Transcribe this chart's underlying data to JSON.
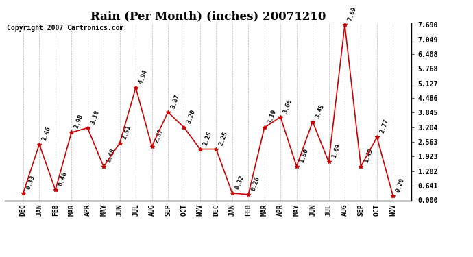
{
  "title": "Rain (Per Month) (inches) 20071210",
  "copyright": "Copyright 2007 Cartronics.com",
  "categories": [
    "DEC",
    "JAN",
    "FEB",
    "MAR",
    "APR",
    "MAY",
    "JUN",
    "JUL",
    "AUG",
    "SEP",
    "OCT",
    "NOV",
    "DEC",
    "JAN",
    "FEB",
    "MAR",
    "APR",
    "MAY",
    "JUN",
    "JUL",
    "AUG",
    "SEP",
    "OCT",
    "NOV"
  ],
  "values": [
    0.33,
    2.46,
    0.46,
    2.98,
    3.18,
    1.48,
    2.51,
    4.94,
    2.37,
    3.87,
    3.2,
    2.25,
    2.25,
    0.32,
    0.26,
    3.19,
    3.66,
    1.5,
    3.45,
    1.69,
    7.69,
    1.49,
    2.77,
    0.2
  ],
  "line_color": "#cc0000",
  "marker_color": "#cc0000",
  "bg_color": "#ffffff",
  "grid_color": "#aaaaaa",
  "title_fontsize": 12,
  "label_fontsize": 6.5,
  "tick_fontsize": 7,
  "copyright_fontsize": 7,
  "ymax": 7.69,
  "right_yticks": [
    0.0,
    0.641,
    1.282,
    1.923,
    2.563,
    3.204,
    3.845,
    4.486,
    5.127,
    5.768,
    6.408,
    7.049,
    7.69
  ]
}
